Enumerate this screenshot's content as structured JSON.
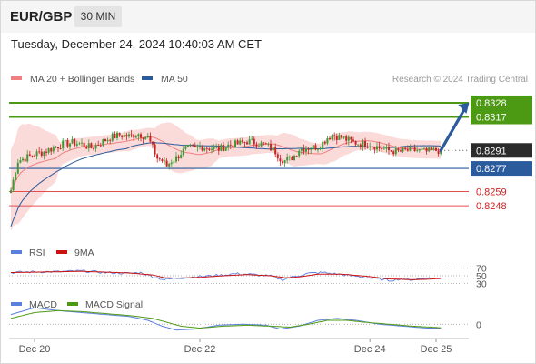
{
  "header": {
    "pair": "EUR/GBP",
    "timeframe": "30 MIN"
  },
  "datetime": "Tuesday, December 24, 2024 10:40:03 AM CET",
  "credit": "Research © 2024 Trading Central",
  "colors": {
    "bollinger": "#f08080",
    "band_fill": "#fbdada",
    "ma50": "#2a5b9c",
    "target": "#4c9a13",
    "support": "#e05050",
    "current": "#333333",
    "arrow": "#2a5b9c",
    "rsi": "#5b7fdc",
    "rsi_ma": "#cc1111",
    "macd": "#5b7fdc",
    "macd_signal": "#4c9a13",
    "candle_up": "#3f9a35",
    "candle_down": "#cc2222"
  },
  "chart_data": [
    {
      "type": "candlestick",
      "panel": "price",
      "legend": [
        {
          "label": "MA 20 + Bollinger Bands",
          "color": "#f08080"
        },
        {
          "label": "MA 50",
          "color": "#2a5b9c"
        }
      ],
      "ylim": [
        0.8224,
        0.834
      ],
      "x_ticks": [
        {
          "i": 10,
          "label": "Dec 20"
        },
        {
          "i": 80,
          "label": "Dec 22"
        },
        {
          "i": 152,
          "label": "Dec 24"
        },
        {
          "i": 180,
          "label": "Dec 25"
        }
      ],
      "levels": [
        {
          "value": 0.8328,
          "label": "0.8328",
          "kind": "target"
        },
        {
          "value": 0.8317,
          "label": "0.8317",
          "kind": "target"
        },
        {
          "value": 0.8291,
          "label": "0.8291",
          "kind": "current"
        },
        {
          "value": 0.8277,
          "label": "0.8277",
          "kind": "pivot"
        },
        {
          "value": 0.8259,
          "label": "0.8259",
          "kind": "support"
        },
        {
          "value": 0.8248,
          "label": "0.8248",
          "kind": "support"
        }
      ],
      "arrow": {
        "from": [
          182,
          0.8291
        ],
        "to": [
          194,
          0.8328
        ]
      },
      "anchors": [
        [
          0,
          0.826
        ],
        [
          3,
          0.8283
        ],
        [
          6,
          0.8285
        ],
        [
          10,
          0.8288
        ],
        [
          14,
          0.829
        ],
        [
          18,
          0.8293
        ],
        [
          22,
          0.8296
        ],
        [
          26,
          0.8297
        ],
        [
          30,
          0.8296
        ],
        [
          34,
          0.8293
        ],
        [
          38,
          0.8297
        ],
        [
          42,
          0.8301
        ],
        [
          46,
          0.8303
        ],
        [
          50,
          0.8302
        ],
        [
          54,
          0.8304
        ],
        [
          58,
          0.8301
        ],
        [
          60,
          0.8293
        ],
        [
          62,
          0.8285
        ],
        [
          64,
          0.8283
        ],
        [
          66,
          0.8279
        ],
        [
          68,
          0.8283
        ],
        [
          70,
          0.8285
        ],
        [
          72,
          0.8289
        ],
        [
          74,
          0.8292
        ],
        [
          76,
          0.8293
        ],
        [
          78,
          0.8292
        ],
        [
          80,
          0.8294
        ],
        [
          84,
          0.8293
        ],
        [
          88,
          0.8292
        ],
        [
          92,
          0.8295
        ],
        [
          96,
          0.8296
        ],
        [
          100,
          0.8298
        ],
        [
          104,
          0.8297
        ],
        [
          108,
          0.8295
        ],
        [
          112,
          0.829
        ],
        [
          114,
          0.8285
        ],
        [
          116,
          0.8283
        ],
        [
          118,
          0.8284
        ],
        [
          120,
          0.8287
        ],
        [
          122,
          0.8292
        ],
        [
          126,
          0.8293
        ],
        [
          130,
          0.8294
        ],
        [
          132,
          0.8297
        ],
        [
          134,
          0.8301
        ],
        [
          136,
          0.8303
        ],
        [
          140,
          0.8301
        ],
        [
          144,
          0.8298
        ],
        [
          148,
          0.8296
        ],
        [
          152,
          0.8296
        ],
        [
          156,
          0.8293
        ],
        [
          160,
          0.8291
        ],
        [
          164,
          0.829
        ],
        [
          168,
          0.8291
        ],
        [
          172,
          0.8291
        ],
        [
          176,
          0.829
        ],
        [
          180,
          0.8291
        ],
        [
          182,
          0.8291
        ]
      ]
    },
    {
      "type": "line",
      "panel": "rsi",
      "legend": [
        {
          "label": "RSI",
          "color": "#5b7fdc"
        },
        {
          "label": "9MA",
          "color": "#cc1111"
        }
      ],
      "levels": [
        70,
        50,
        30
      ],
      "ylim": [
        20,
        80
      ],
      "rsi_anchors": [
        [
          0,
          58
        ],
        [
          10,
          60
        ],
        [
          20,
          60
        ],
        [
          30,
          62
        ],
        [
          40,
          58
        ],
        [
          50,
          56
        ],
        [
          55,
          58
        ],
        [
          60,
          48
        ],
        [
          65,
          40
        ],
        [
          70,
          44
        ],
        [
          80,
          48
        ],
        [
          90,
          52
        ],
        [
          95,
          55
        ],
        [
          100,
          54
        ],
        [
          110,
          49
        ],
        [
          115,
          40
        ],
        [
          120,
          48
        ],
        [
          126,
          56
        ],
        [
          132,
          58
        ],
        [
          140,
          53
        ],
        [
          150,
          46
        ],
        [
          160,
          38
        ],
        [
          165,
          42
        ],
        [
          170,
          40
        ],
        [
          176,
          44
        ],
        [
          182,
          43
        ]
      ],
      "ma_anchors": [
        [
          0,
          58
        ],
        [
          10,
          59
        ],
        [
          20,
          60
        ],
        [
          30,
          61
        ],
        [
          40,
          59
        ],
        [
          50,
          57
        ],
        [
          60,
          52
        ],
        [
          65,
          45
        ],
        [
          70,
          44
        ],
        [
          80,
          46
        ],
        [
          90,
          50
        ],
        [
          100,
          53
        ],
        [
          110,
          50
        ],
        [
          116,
          45
        ],
        [
          122,
          47
        ],
        [
          130,
          54
        ],
        [
          140,
          54
        ],
        [
          150,
          49
        ],
        [
          160,
          42
        ],
        [
          170,
          40
        ],
        [
          176,
          41
        ],
        [
          182,
          43
        ]
      ]
    },
    {
      "type": "line",
      "panel": "macd",
      "legend": [
        {
          "label": "MACD",
          "color": "#5b7fdc"
        },
        {
          "label": "MACD Signal",
          "color": "#4c9a13"
        }
      ],
      "zero_label": "0",
      "ylim": [
        -0.00055,
        0.00095
      ],
      "macd_anchors": [
        [
          0,
          0.0005
        ],
        [
          10,
          0.00085
        ],
        [
          20,
          0.0007
        ],
        [
          30,
          0.0006
        ],
        [
          40,
          0.0005
        ],
        [
          50,
          0.0004
        ],
        [
          58,
          0.0002
        ],
        [
          64,
          -0.0001
        ],
        [
          70,
          -0.0003
        ],
        [
          78,
          -0.00025
        ],
        [
          88,
          -5e-05
        ],
        [
          98,
          0.0
        ],
        [
          108,
          -5e-05
        ],
        [
          114,
          -0.00025
        ],
        [
          122,
          -0.0001
        ],
        [
          130,
          0.0002
        ],
        [
          138,
          0.0003
        ],
        [
          146,
          0.0002
        ],
        [
          156,
          0.0
        ],
        [
          166,
          -0.0001
        ],
        [
          176,
          -0.0002
        ],
        [
          182,
          -0.0002
        ]
      ],
      "signal_anchors": [
        [
          0,
          0.0003
        ],
        [
          10,
          0.0006
        ],
        [
          20,
          0.0007
        ],
        [
          30,
          0.00065
        ],
        [
          40,
          0.00055
        ],
        [
          50,
          0.00045
        ],
        [
          60,
          0.0003
        ],
        [
          66,
          0.0001
        ],
        [
          72,
          -0.0001
        ],
        [
          80,
          -0.0002
        ],
        [
          90,
          -0.0001
        ],
        [
          100,
          -5e-05
        ],
        [
          110,
          -0.0001
        ],
        [
          118,
          -0.00015
        ],
        [
          126,
          0.0
        ],
        [
          134,
          0.0002
        ],
        [
          142,
          0.0002
        ],
        [
          150,
          0.0001
        ],
        [
          160,
          0.0
        ],
        [
          170,
          -0.0001
        ],
        [
          182,
          -0.00018
        ]
      ]
    }
  ]
}
